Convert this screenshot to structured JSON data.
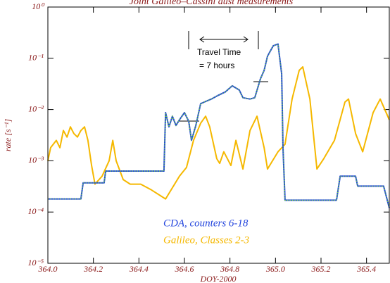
{
  "chart_data": {
    "type": "line",
    "title": "Joint Galileo–Cassini dust measurements",
    "x_label": "DOY-2000",
    "y_label": "rate [s⁻¹]",
    "annotation_lines": [
      "Travel Time",
      "= 7 hours"
    ],
    "log_y": true,
    "xlim": [
      364.0,
      365.5
    ],
    "ylim": [
      1e-05,
      1
    ],
    "xticks": [
      {
        "value": 364,
        "label": "364.0"
      },
      364.2,
      364.4,
      364.6,
      364.8,
      {
        "value": 365,
        "label": "365.0"
      },
      365.2,
      365.4
    ],
    "yticks": [
      {
        "value": 1,
        "label": "10⁰"
      },
      {
        "value": 0.1,
        "label": "10⁻¹"
      },
      {
        "value": 0.01,
        "label": "10⁻²"
      },
      {
        "value": 0.001,
        "label": "10⁻³"
      },
      {
        "value": 0.0001,
        "label": "10⁻⁴"
      },
      {
        "value": 1e-05,
        "label": "10⁻⁵"
      }
    ],
    "series": [
      {
        "name": "CDA, counters 6-18",
        "color": "#2244dd",
        "highlight": "#77dd33",
        "x": [
          364.0,
          364.145,
          364.155,
          364.247,
          364.254,
          364.51,
          364.517,
          364.532,
          364.547,
          364.563,
          364.578,
          364.6,
          364.619,
          364.631,
          364.65,
          364.671,
          364.687,
          364.718,
          364.749,
          364.779,
          364.81,
          364.841,
          364.857,
          364.888,
          364.909,
          364.934,
          364.95,
          364.965,
          364.99,
          365.011,
          365.027,
          365.033,
          365.042,
          365.268,
          365.284,
          365.352,
          365.361,
          365.475,
          365.5
        ],
        "values": [
          0.00018,
          0.00018,
          0.00037,
          0.00037,
          0.00063,
          0.00063,
          0.0087,
          0.0046,
          0.0074,
          0.0049,
          0.0063,
          0.0087,
          0.0059,
          0.0025,
          0.0049,
          0.013,
          0.014,
          0.016,
          0.019,
          0.022,
          0.029,
          0.024,
          0.017,
          0.016,
          0.017,
          0.04,
          0.058,
          0.11,
          0.175,
          0.19,
          0.05,
          0.0018,
          0.00017,
          0.00017,
          0.0005,
          0.0005,
          0.00032,
          0.00032,
          0.00012
        ]
      },
      {
        "name": "Galileo, Classes 2-3",
        "color": "#f5b800",
        "x": [
          364.0,
          364.012,
          364.037,
          364.053,
          364.068,
          364.084,
          364.099,
          364.114,
          364.13,
          364.145,
          364.161,
          364.176,
          364.192,
          364.207,
          364.238,
          364.269,
          364.285,
          364.3,
          364.331,
          364.362,
          364.408,
          364.455,
          364.517,
          364.578,
          364.609,
          364.64,
          364.671,
          364.693,
          364.711,
          364.742,
          364.755,
          364.773,
          364.804,
          364.826,
          364.857,
          364.888,
          364.919,
          364.95,
          364.965,
          365.011,
          365.042,
          365.073,
          365.104,
          365.12,
          365.151,
          365.182,
          365.212,
          365.259,
          365.305,
          365.321,
          365.352,
          365.383,
          365.429,
          365.46,
          365.5
        ],
        "values": [
          0.001,
          0.0018,
          0.0025,
          0.0018,
          0.0039,
          0.0029,
          0.0046,
          0.0034,
          0.0029,
          0.0039,
          0.0046,
          0.0025,
          0.00081,
          0.00035,
          0.0005,
          0.001,
          0.0025,
          0.001,
          0.00043,
          0.00035,
          0.00035,
          0.00027,
          0.00018,
          0.0005,
          0.00074,
          0.0025,
          0.0054,
          0.0074,
          0.0046,
          0.0011,
          0.00089,
          0.0015,
          0.00081,
          0.0025,
          0.00069,
          0.0039,
          0.0074,
          0.0018,
          0.00069,
          0.0015,
          0.0021,
          0.016,
          0.058,
          0.068,
          0.016,
          0.00069,
          0.0011,
          0.0025,
          0.014,
          0.016,
          0.0034,
          0.0015,
          0.0087,
          0.016,
          0.0063
        ]
      }
    ]
  }
}
